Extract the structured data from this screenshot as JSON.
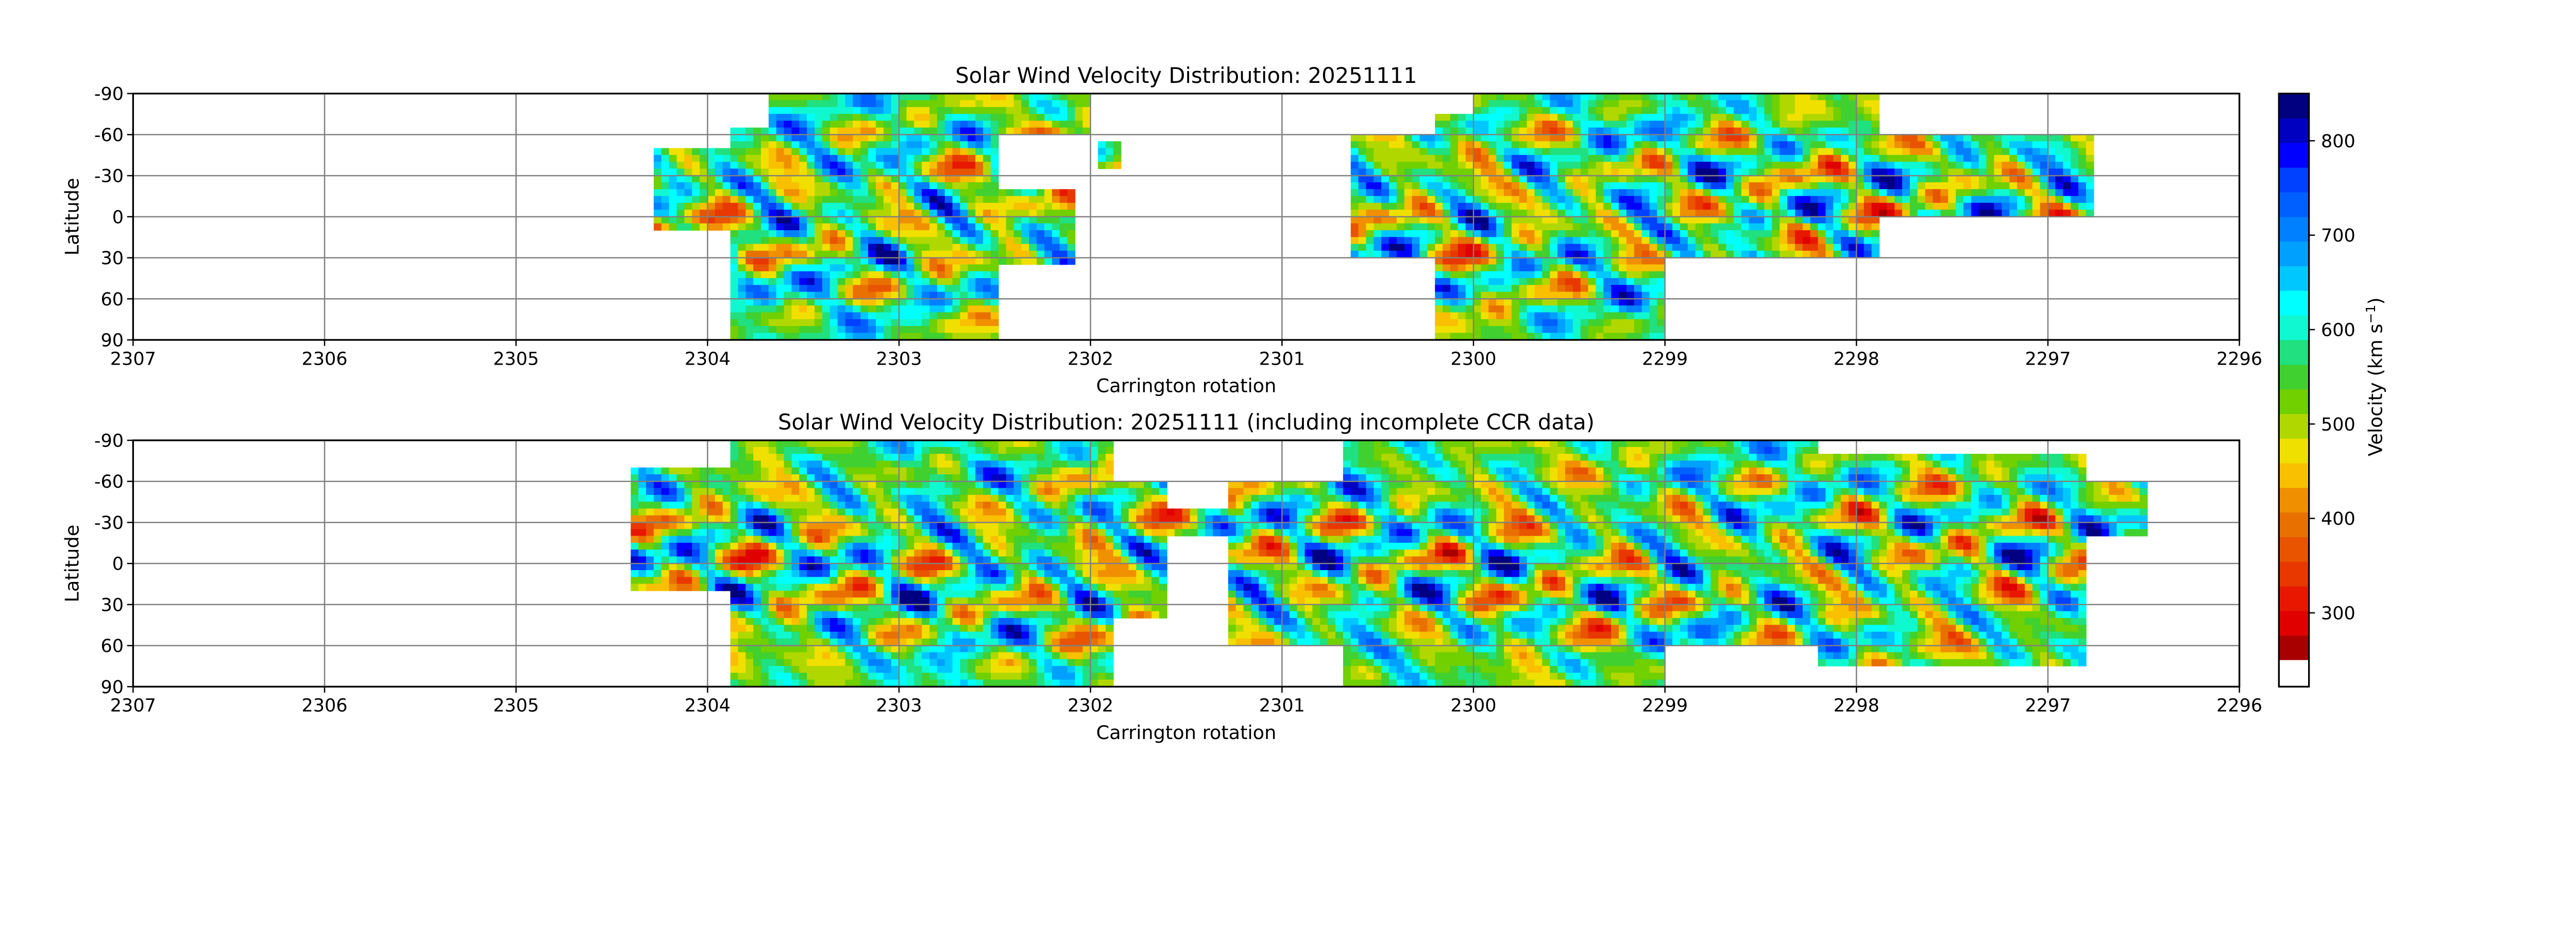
{
  "chart_data": [
    {
      "type": "heatmap",
      "title": "Solar Wind Velocity Distribution: 20251111",
      "xlabel": "Carrington rotation",
      "ylabel": "Latitude",
      "xlim": [
        2307,
        2296
      ],
      "ylim": [
        -90,
        90
      ],
      "x_ticks": [
        "2307",
        "2306",
        "2305",
        "2304",
        "2303",
        "2302",
        "2301",
        "2300",
        "2299",
        "2298",
        "2297",
        "2296"
      ],
      "y_ticks": [
        "-90",
        "-60",
        "-30",
        "0",
        "30",
        "60",
        "90"
      ],
      "grid": true,
      "coverage": [
        {
          "lon": [
            2304.3,
            2303.9
          ],
          "lat": [
            -50,
            10
          ]
        },
        {
          "lon": [
            2303.9,
            2303.7
          ],
          "lat": [
            -65,
            90
          ]
        },
        {
          "lon": [
            2303.7,
            2302.5
          ],
          "lat": [
            -90,
            90
          ]
        },
        {
          "lon": [
            2302.5,
            2302.0
          ],
          "lat": [
            -90,
            -60
          ]
        },
        {
          "lon": [
            2302.6,
            2302.1
          ],
          "lat": [
            -20,
            35
          ]
        },
        {
          "lon": [
            2301.95,
            2301.85
          ],
          "lat": [
            -55,
            -35
          ]
        },
        {
          "lon": [
            2300.65,
            2300.0
          ],
          "lat": [
            -60,
            30
          ]
        },
        {
          "lon": [
            2300.2,
            2299.0
          ],
          "lat": [
            -75,
            90
          ]
        },
        {
          "lon": [
            2300.0,
            2297.9
          ],
          "lat": [
            -90,
            30
          ]
        },
        {
          "lon": [
            2297.9,
            2296.75
          ],
          "lat": [
            -60,
            0
          ]
        }
      ]
    },
    {
      "type": "heatmap",
      "title": "Solar Wind Velocity Distribution: 20251111 (including incomplete CCR data)",
      "xlabel": "Carrington rotation",
      "ylabel": "Latitude",
      "xlim": [
        2307,
        2296
      ],
      "ylim": [
        -90,
        90
      ],
      "x_ticks": [
        "2307",
        "2306",
        "2305",
        "2304",
        "2303",
        "2302",
        "2301",
        "2300",
        "2299",
        "2298",
        "2297",
        "2296"
      ],
      "y_ticks": [
        "-90",
        "-60",
        "-30",
        "0",
        "30",
        "60",
        "90"
      ],
      "grid": true,
      "coverage": [
        {
          "lon": [
            2304.4,
            2303.9
          ],
          "lat": [
            -70,
            20
          ]
        },
        {
          "lon": [
            2303.9,
            2301.9
          ],
          "lat": [
            -90,
            90
          ]
        },
        {
          "lon": [
            2301.9,
            2301.6
          ],
          "lat": [
            -60,
            40
          ]
        },
        {
          "lon": [
            2301.6,
            2301.3
          ],
          "lat": [
            -40,
            -20
          ]
        },
        {
          "lon": [
            2301.3,
            2300.7
          ],
          "lat": [
            -60,
            60
          ]
        },
        {
          "lon": [
            2300.7,
            2299.0
          ],
          "lat": [
            -90,
            90
          ]
        },
        {
          "lon": [
            2299.0,
            2298.2
          ],
          "lat": [
            -90,
            60
          ]
        },
        {
          "lon": [
            2298.2,
            2296.8
          ],
          "lat": [
            -80,
            75
          ]
        },
        {
          "lon": [
            2296.8,
            2296.5
          ],
          "lat": [
            -60,
            -20
          ]
        }
      ]
    }
  ],
  "colorbar": {
    "label_main": "Velocity (km s",
    "label_sup": "−1",
    "label_end": ")",
    "ticks": [
      "300",
      "400",
      "500",
      "600",
      "700",
      "800"
    ],
    "min": 250,
    "max": 850,
    "colors_low_to_high": [
      "#a80000",
      "#e00000",
      "#e81800",
      "#e83800",
      "#e85400",
      "#e87000",
      "#f09000",
      "#f8c000",
      "#f0e000",
      "#b0d800",
      "#70d000",
      "#40d030",
      "#20e080",
      "#10f8d0",
      "#00ffff",
      "#00c8ff",
      "#00a0ff",
      "#0080ff",
      "#0060ff",
      "#0040ff",
      "#0000ff",
      "#0000c0",
      "#000080"
    ],
    "below_min_color": "#ffffff"
  }
}
